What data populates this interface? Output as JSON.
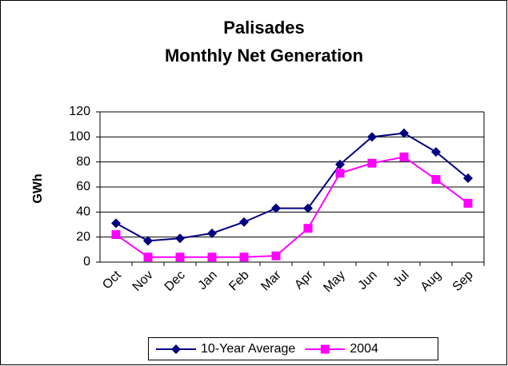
{
  "chart_data": {
    "type": "line",
    "title": "Palisades",
    "subtitle": "Monthly Net Generation",
    "y_label": "GWh",
    "categories": [
      "Oct",
      "Nov",
      "Dec",
      "Jan",
      "Feb",
      "Mar",
      "Apr",
      "May",
      "Jun",
      "Jul",
      "Aug",
      "Sep"
    ],
    "series": [
      {
        "name": "10-Year Average",
        "color": "#000080",
        "marker": "diamond",
        "values": [
          31,
          17,
          19,
          23,
          32,
          43,
          43,
          78,
          100,
          103,
          88,
          67
        ]
      },
      {
        "name": "2004",
        "color": "#ff00ff",
        "marker": "square",
        "values": [
          22,
          4,
          4,
          4,
          4,
          5,
          27,
          71,
          79,
          84,
          66,
          47
        ]
      }
    ],
    "ylim": [
      0,
      120
    ],
    "yticks": [
      0,
      20,
      40,
      60,
      80,
      100,
      120
    ],
    "grid": true,
    "legend": "bottom"
  }
}
